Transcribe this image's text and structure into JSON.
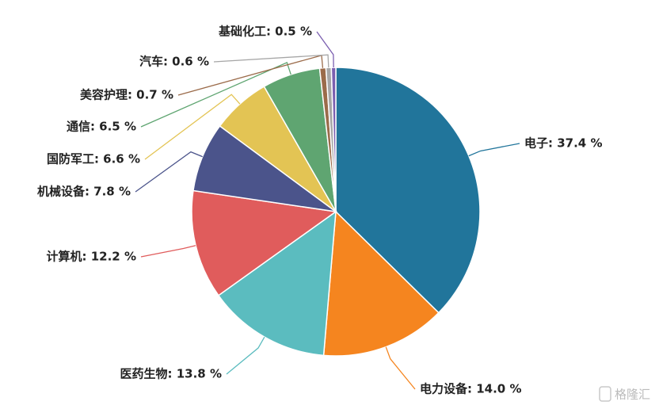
{
  "chart_data": {
    "type": "pie",
    "values": [
      37.4,
      14.0,
      13.8,
      12.2,
      7.8,
      6.6,
      6.5,
      0.7,
      0.6,
      0.5
    ],
    "value_labels": [
      "电子: 37.4 %",
      "电力设备: 14.0 %",
      "医药生物: 13.8 %",
      "计算机: 12.2 %",
      "机械设备: 7.8 %",
      "国防军工: 6.6 %",
      "通信: 6.5 %",
      "美容护理: 0.7 %",
      "汽车: 0.6 %",
      "基础化工: 0.5 %"
    ],
    "colors": [
      "#21759b",
      "#f5851f",
      "#5bbcbf",
      "#e05c5c",
      "#4b548b",
      "#e3c454",
      "#5fa571",
      "#9b6b4a",
      "#a6a6a6",
      "#7b5fb0"
    ],
    "watermark": "格隆汇"
  }
}
